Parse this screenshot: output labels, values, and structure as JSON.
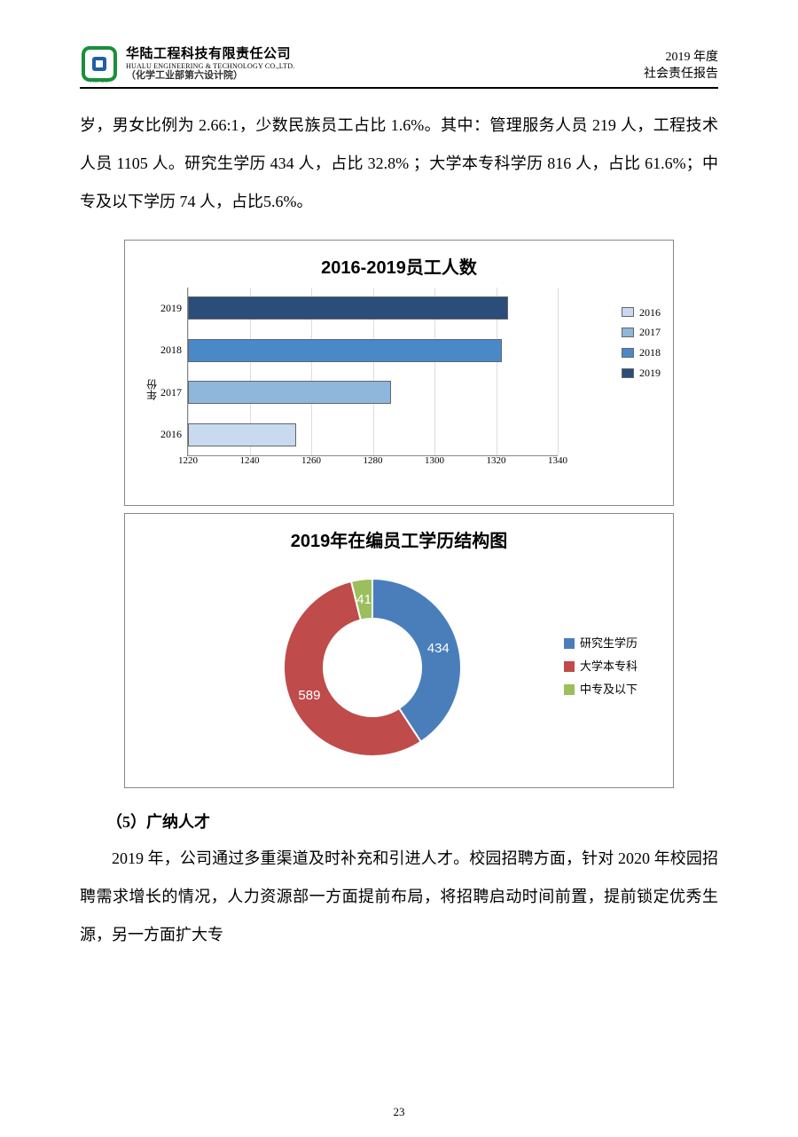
{
  "header": {
    "company_name": "华陆工程科技有限责任公司",
    "company_en": "HUALU ENGINEERING & TECHNOLOGY CO.,LTD.",
    "company_sub": "（化学工业部第六设计院）",
    "logo_text": "HUALU",
    "logo_colors": {
      "outer": "#1a8f3c",
      "inner": "#1e5fa8"
    },
    "right_line1": "2019 年度",
    "right_line2": "社会责任报告"
  },
  "body_para1": "岁，男女比例为 2.66:1，少数民族员工占比 1.6%。其中：管理服务人员 219 人，工程技术人员 1105 人。研究生学历 434 人，占比 32.8%  ；大学本专科学历 816 人，占比 61.6%；中专及以下学历 74 人，占比5.6%。",
  "bar_chart": {
    "type": "bar-horizontal",
    "title": "2016-2019员工人数",
    "y_axis_label": "年份",
    "categories": [
      "2019",
      "2018",
      "2017",
      "2016"
    ],
    "values": [
      1324,
      1322,
      1286,
      1255
    ],
    "bar_colors": [
      "#2a4d7a",
      "#4a89c8",
      "#8fb6db",
      "#c8daf0"
    ],
    "x_min": 1220,
    "x_max": 1340,
    "x_tick_step": 20,
    "x_ticks": [
      1220,
      1240,
      1260,
      1280,
      1300,
      1320,
      1340
    ],
    "grid_color": "#dddddd",
    "border_color": "#888888",
    "title_fontsize": 20,
    "tick_fontsize": 11,
    "legend": [
      {
        "label": "2016",
        "color": "#c8daf0"
      },
      {
        "label": "2017",
        "color": "#8fb6db"
      },
      {
        "label": "2018",
        "color": "#4a89c8"
      },
      {
        "label": "2019",
        "color": "#2a4d7a"
      }
    ]
  },
  "donut_chart": {
    "type": "donut",
    "title": "2019年在编员工学历结构图",
    "title_fontsize": 20,
    "segments": [
      {
        "label": "研究生学历",
        "value": 434,
        "color": "#4a7ebb"
      },
      {
        "label": "大学本专科",
        "value": 589,
        "color": "#bf4b4b"
      },
      {
        "label": "中专及以下",
        "value": 41,
        "color": "#9abf5c"
      }
    ],
    "value_labels": [
      "434",
      "589",
      "41"
    ],
    "inner_radius_ratio": 0.55,
    "background_color": "#ffffff",
    "label_color": "#ffffff"
  },
  "section5_head": "（5）广纳人才",
  "body_para2": "2019 年，公司通过多重渠道及时补充和引进人才。校园招聘方面，针对 2020 年校园招聘需求增长的情况，人力资源部一方面提前布局，将招聘启动时间前置，提前锁定优秀生源，另一方面扩大专",
  "page_number": "23"
}
